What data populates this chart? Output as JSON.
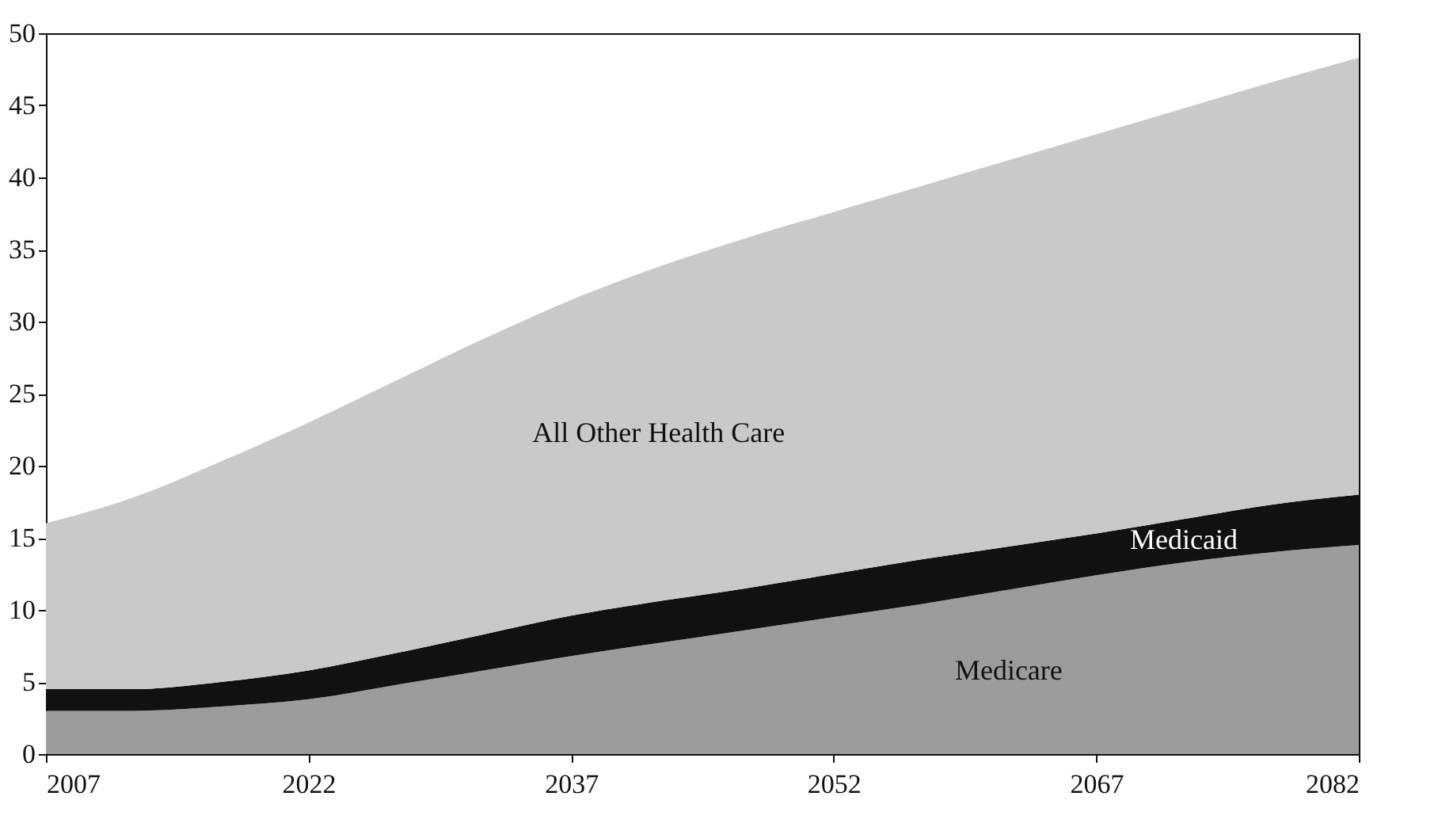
{
  "chart_data": {
    "type": "area",
    "stacked": true,
    "x": [
      2007,
      2012,
      2017,
      2022,
      2027,
      2032,
      2037,
      2042,
      2047,
      2052,
      2057,
      2062,
      2067,
      2072,
      2077,
      2082
    ],
    "series": [
      {
        "name": "Medicare",
        "color": "#9c9c9c",
        "values": [
          3,
          3,
          3.3,
          3.8,
          4.8,
          5.8,
          6.8,
          7.7,
          8.6,
          9.5,
          10.4,
          11.4,
          12.4,
          13.3,
          14,
          14.5
        ]
      },
      {
        "name": "Medicaid",
        "color": "#111111",
        "values": [
          1.5,
          1.5,
          1.7,
          2,
          2.2,
          2.5,
          2.8,
          2.9,
          2.9,
          3,
          3.1,
          3,
          2.9,
          3,
          3.3,
          3.5
        ]
      },
      {
        "name": "All Other Health Care",
        "color": "#c9c9c9",
        "values": [
          11.5,
          13.3,
          15.3,
          17.2,
          18.9,
          20.5,
          21.9,
          23.2,
          24.3,
          25.1,
          25.9,
          26.8,
          27.7,
          28.5,
          29.3,
          30.3
        ]
      }
    ],
    "xlim": [
      2007,
      2082
    ],
    "xticks": [
      2007,
      2022,
      2037,
      2052,
      2067,
      2082
    ],
    "ylim": [
      0,
      50
    ],
    "yticks": [
      0,
      5,
      10,
      15,
      20,
      25,
      30,
      35,
      40,
      45,
      50
    ]
  }
}
